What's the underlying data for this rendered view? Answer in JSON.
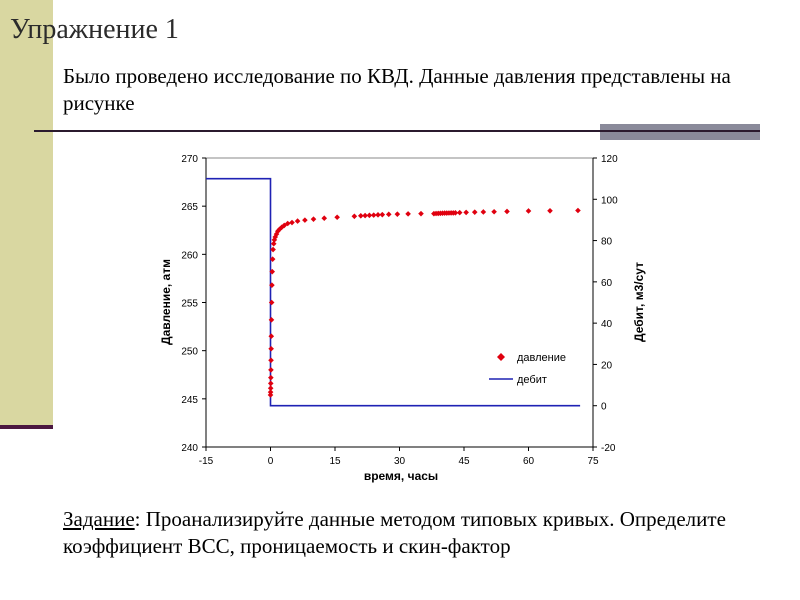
{
  "slide": {
    "title": "Упражнение 1",
    "intro": "Было проведено исследование по КВД. Данные давления представлены на рисунке",
    "task_label": "Задание",
    "task_text": ": Проанализируйте данные методом типовых кривых. Определите коэффициент ВСС, проницаемость и скин-фактор"
  },
  "colors": {
    "accent_bar": "#d9d7a1",
    "pressure": "#e0000f",
    "rate": "#1f22b4"
  },
  "chart_data": {
    "type": "scatter",
    "xlabel": "время, часы",
    "ylabel": "Давление, атм",
    "y2label": "Дебит, м3/сут",
    "xlim": [
      -15,
      75
    ],
    "ylim": [
      240,
      270
    ],
    "y2lim": [
      -20,
      120
    ],
    "xticks": [
      -15,
      0,
      15,
      30,
      45,
      60,
      75
    ],
    "yticks": [
      240,
      245,
      250,
      255,
      260,
      265,
      270
    ],
    "y2ticks": [
      -20,
      0,
      20,
      40,
      60,
      80,
      100,
      120
    ],
    "grid": false,
    "legend_position": "lower-right",
    "series": [
      {
        "name": "давление",
        "kind": "scatter",
        "axis": "left",
        "x": [
          0.0,
          0.02,
          0.04,
          0.06,
          0.08,
          0.1,
          0.12,
          0.15,
          0.18,
          0.22,
          0.27,
          0.33,
          0.4,
          0.5,
          0.6,
          0.75,
          0.9,
          1.1,
          1.4,
          1.7,
          2.1,
          2.6,
          3.2,
          4.0,
          5.0,
          6.3,
          8.0,
          10.0,
          12.5,
          15.5,
          19.5,
          21.0,
          22.0,
          23.0,
          24.0,
          25.0,
          26.0,
          27.5,
          29.5,
          32.0,
          35.0,
          38.0,
          38.5,
          39.0,
          39.5,
          40.0,
          40.5,
          41.0,
          41.5,
          42.0,
          42.5,
          43.0,
          44.0,
          45.5,
          47.5,
          49.5,
          52.0,
          55.0,
          60.0,
          65.0,
          71.5
        ],
        "values": [
          245.4,
          245.7,
          246.1,
          246.6,
          247.2,
          248.0,
          249.0,
          250.2,
          251.5,
          253.2,
          255.0,
          256.8,
          258.2,
          259.5,
          260.5,
          261.1,
          261.5,
          261.8,
          262.1,
          262.4,
          262.6,
          262.8,
          263.0,
          263.2,
          263.3,
          263.45,
          263.55,
          263.65,
          263.75,
          263.85,
          263.95,
          264.0,
          264.02,
          264.05,
          264.07,
          264.1,
          264.12,
          264.15,
          264.17,
          264.2,
          264.22,
          264.22,
          264.24,
          264.25,
          264.26,
          264.27,
          264.28,
          264.28,
          264.29,
          264.3,
          264.3,
          264.31,
          264.33,
          264.35,
          264.38,
          264.4,
          264.42,
          264.45,
          264.5,
          264.52,
          264.55
        ]
      },
      {
        "name": "дебит",
        "kind": "line",
        "axis": "right",
        "x": [
          -15,
          0,
          0,
          72
        ],
        "values": [
          110,
          110,
          0,
          0
        ]
      }
    ]
  }
}
